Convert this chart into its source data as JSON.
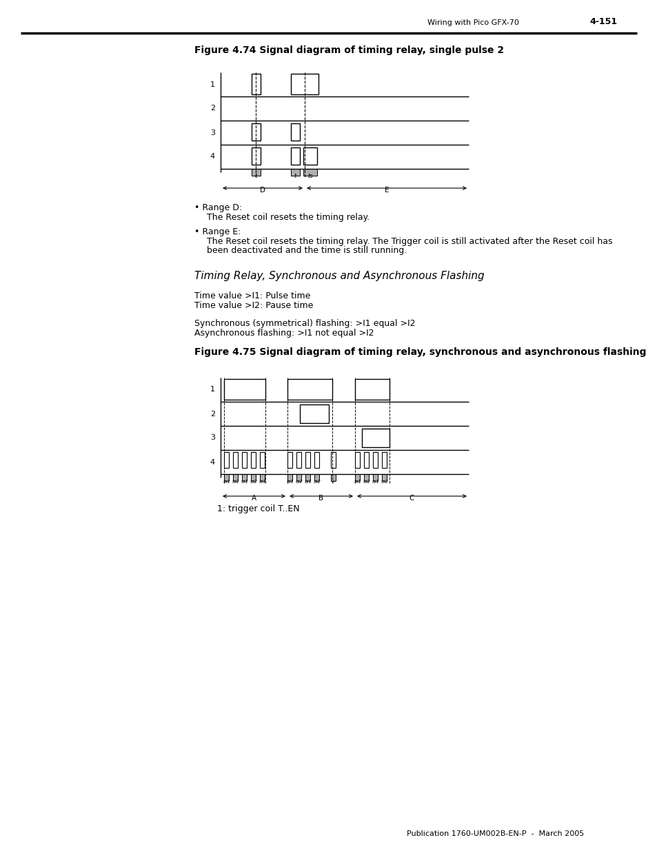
{
  "page_header_left": "Wiring with Pico GFX-70",
  "page_header_right": "4-151",
  "fig74_title": "Figure 4.74 Signal diagram of timing relay, single pulse 2",
  "fig75_title": "Figure 4.75 Signal diagram of timing relay, synchronous and asynchronous flashing",
  "section_title": "Timing Relay, Synchronous and Asynchronous Flashing",
  "footer": "Publication 1760-UM002B-EN-P  -  March 2005",
  "trigger_label": "1: trigger coil T..EN",
  "bg_color": "#ffffff"
}
